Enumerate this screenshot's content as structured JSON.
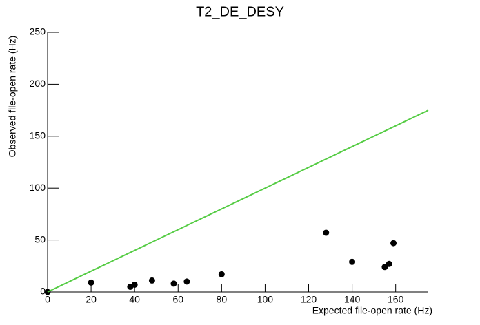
{
  "chart_data": {
    "type": "scatter",
    "title": "T2_DE_DESY",
    "x_label": "Expected file-open rate (Hz)",
    "y_label": "Observed file-open rate (Hz)",
    "xlim": [
      0,
      175
    ],
    "ylim": [
      0,
      250
    ],
    "xticks": [
      0,
      20,
      40,
      60,
      80,
      100,
      120,
      140,
      160
    ],
    "yticks": [
      0,
      50,
      100,
      150,
      200,
      250
    ],
    "series": [
      {
        "color": "#000000",
        "x": [
          0,
          20,
          38,
          40,
          48,
          58,
          64,
          80,
          128,
          140,
          155,
          157,
          159
        ],
        "values": [
          0,
          9,
          5,
          7,
          11,
          8,
          10,
          17,
          57,
          29,
          24,
          27,
          47
        ]
      },
      {
        "color": "#55cc44",
        "line": true,
        "x": [
          0,
          175
        ],
        "values": [
          0,
          175
        ]
      }
    ]
  }
}
